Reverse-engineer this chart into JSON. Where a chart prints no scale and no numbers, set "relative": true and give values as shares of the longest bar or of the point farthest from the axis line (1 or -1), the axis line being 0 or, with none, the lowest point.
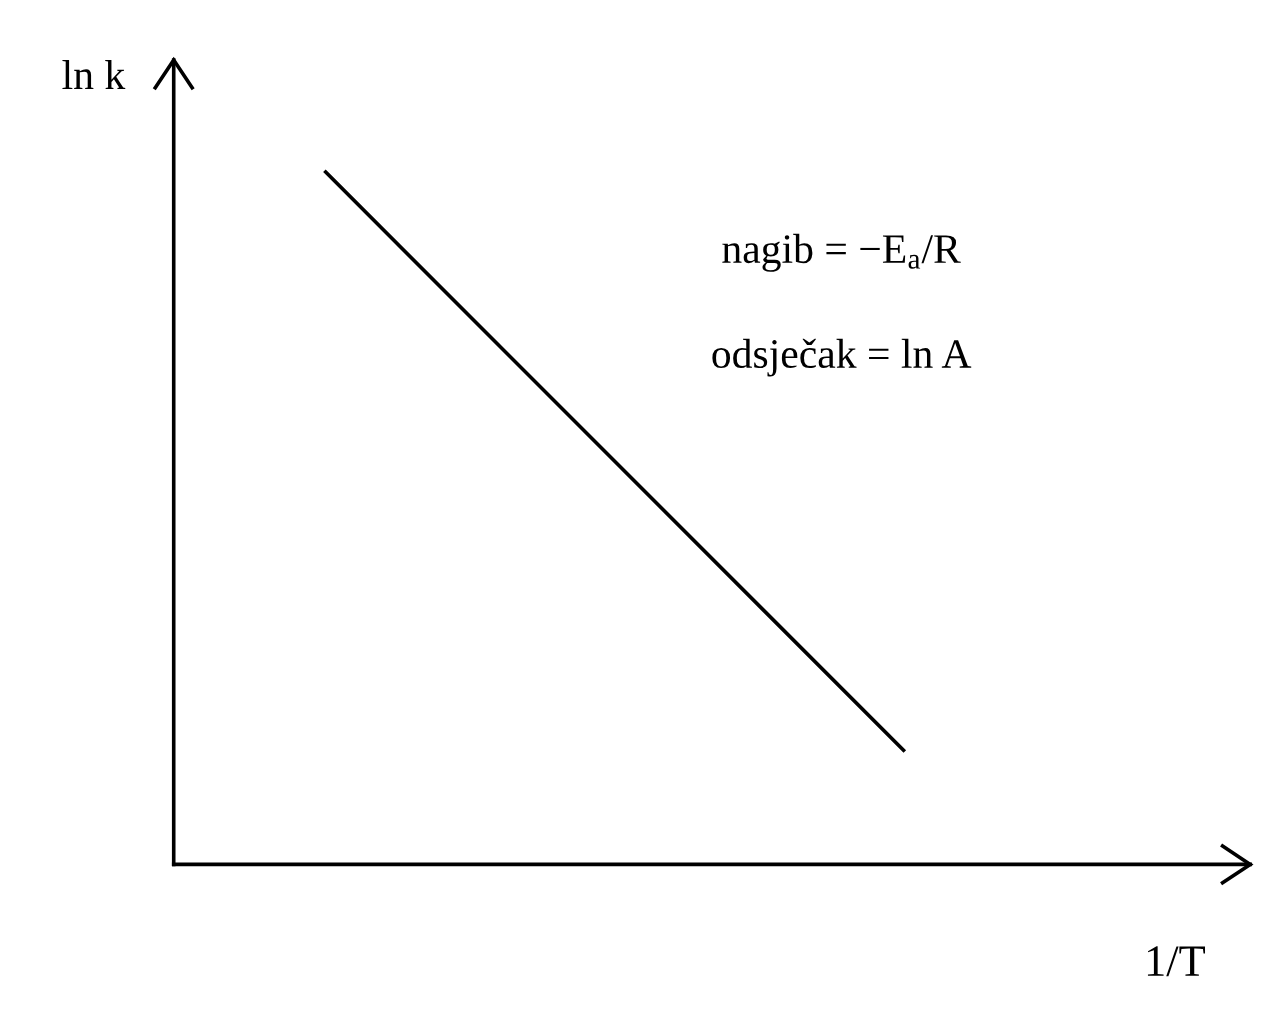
{
  "chart_data": {
    "type": "line",
    "relative": true,
    "categories": [
      null,
      null
    ],
    "series": [
      {
        "color": "#000000",
        "values": [
          1,
          0.165
        ]
      }
    ],
    "xlabel": "1/T",
    "ylabel": "ln k",
    "annotations": [
      "nagib = −E$_{a}$/R",
      "odsječak = ln A"
    ],
    "grid": false,
    "legend": false,
    "marker": "none",
    "line_style": "solid"
  }
}
